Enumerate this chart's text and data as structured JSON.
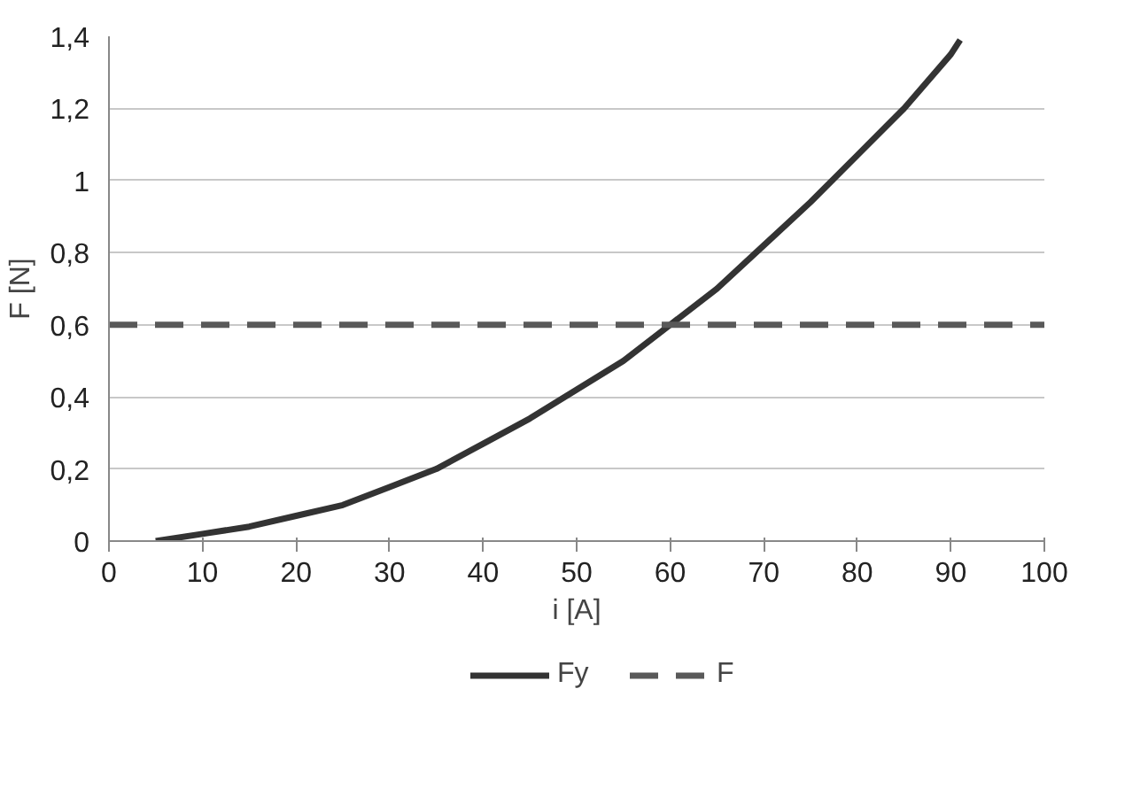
{
  "chart_data": {
    "type": "line",
    "xlabel": "i [A]",
    "ylabel": "F [N]",
    "xlim": [
      0,
      100
    ],
    "xticks": [
      0,
      10,
      20,
      30,
      40,
      50,
      60,
      70,
      80,
      90,
      100
    ],
    "ylim": [
      0,
      1.4
    ],
    "yticks": [
      0,
      {
        "value": 0.2,
        "label": "0,2"
      },
      {
        "value": 0.4,
        "label": "0,4"
      },
      {
        "value": 0.6,
        "label": "0,6"
      },
      {
        "value": 0.8,
        "label": "0,8"
      },
      1,
      {
        "value": 1.2,
        "label": "1,2"
      },
      {
        "value": 1.4,
        "label": "1,4"
      }
    ],
    "grid": "y",
    "legend": "bottom",
    "marker": "none",
    "series": [
      {
        "name": "Fy",
        "color": "#333333",
        "line_style": "solid",
        "x": [
          5,
          10,
          15,
          20,
          25,
          30,
          35,
          40,
          45,
          50,
          55,
          60,
          65,
          70,
          75,
          80,
          85,
          90,
          91
        ],
        "values": [
          0.0,
          0.02,
          0.04,
          0.07,
          0.1,
          0.15,
          0.2,
          0.27,
          0.34,
          0.42,
          0.5,
          0.6,
          0.7,
          0.82,
          0.94,
          1.07,
          1.2,
          1.35,
          1.39
        ]
      },
      {
        "name": "F",
        "color": "#595959",
        "line_style": "dashed",
        "x": [
          0,
          100
        ],
        "values": [
          0.6,
          0.6
        ]
      }
    ]
  }
}
